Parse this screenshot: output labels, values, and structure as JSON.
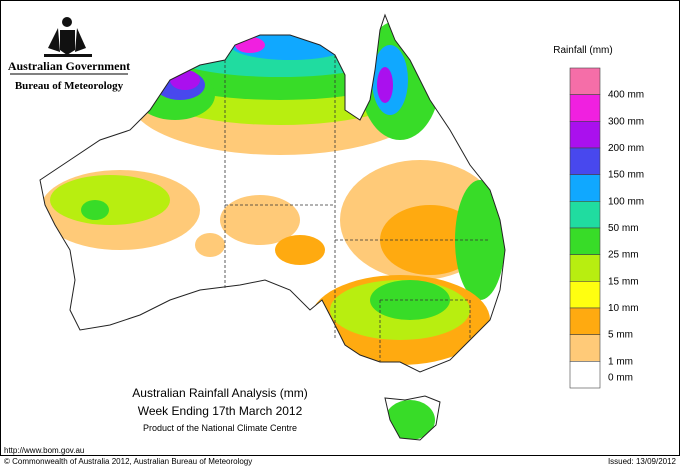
{
  "header": {
    "government": "Australian Government",
    "agency": "Bureau of Meteorology"
  },
  "legend": {
    "title": "Rainfall (mm)",
    "colors": [
      "#f56ea8",
      "#f020e0",
      "#aa10ee",
      "#4848ee",
      "#10a8ff",
      "#20dca0",
      "#38dc28",
      "#b8ee10",
      "#ffff10",
      "#ffaa10",
      "#ffca78",
      "#ffffff"
    ],
    "labels": [
      "400 mm",
      "300 mm",
      "200 mm",
      "150 mm",
      "100 mm",
      "50 mm",
      "25 mm",
      "15 mm",
      "10 mm",
      "5 mm",
      "1 mm",
      "0 mm"
    ]
  },
  "title": {
    "line1": "Australian Rainfall Analysis (mm)",
    "line2": "Week Ending 17th March 2012",
    "line3": "Product of the National Climate Centre"
  },
  "footer": {
    "url": "http://www.bom.gov.au",
    "copyright": "© Commonwealth of Australia 2012, Australian Bureau of Meteorology",
    "issued": "Issued: 13/09/2012"
  }
}
